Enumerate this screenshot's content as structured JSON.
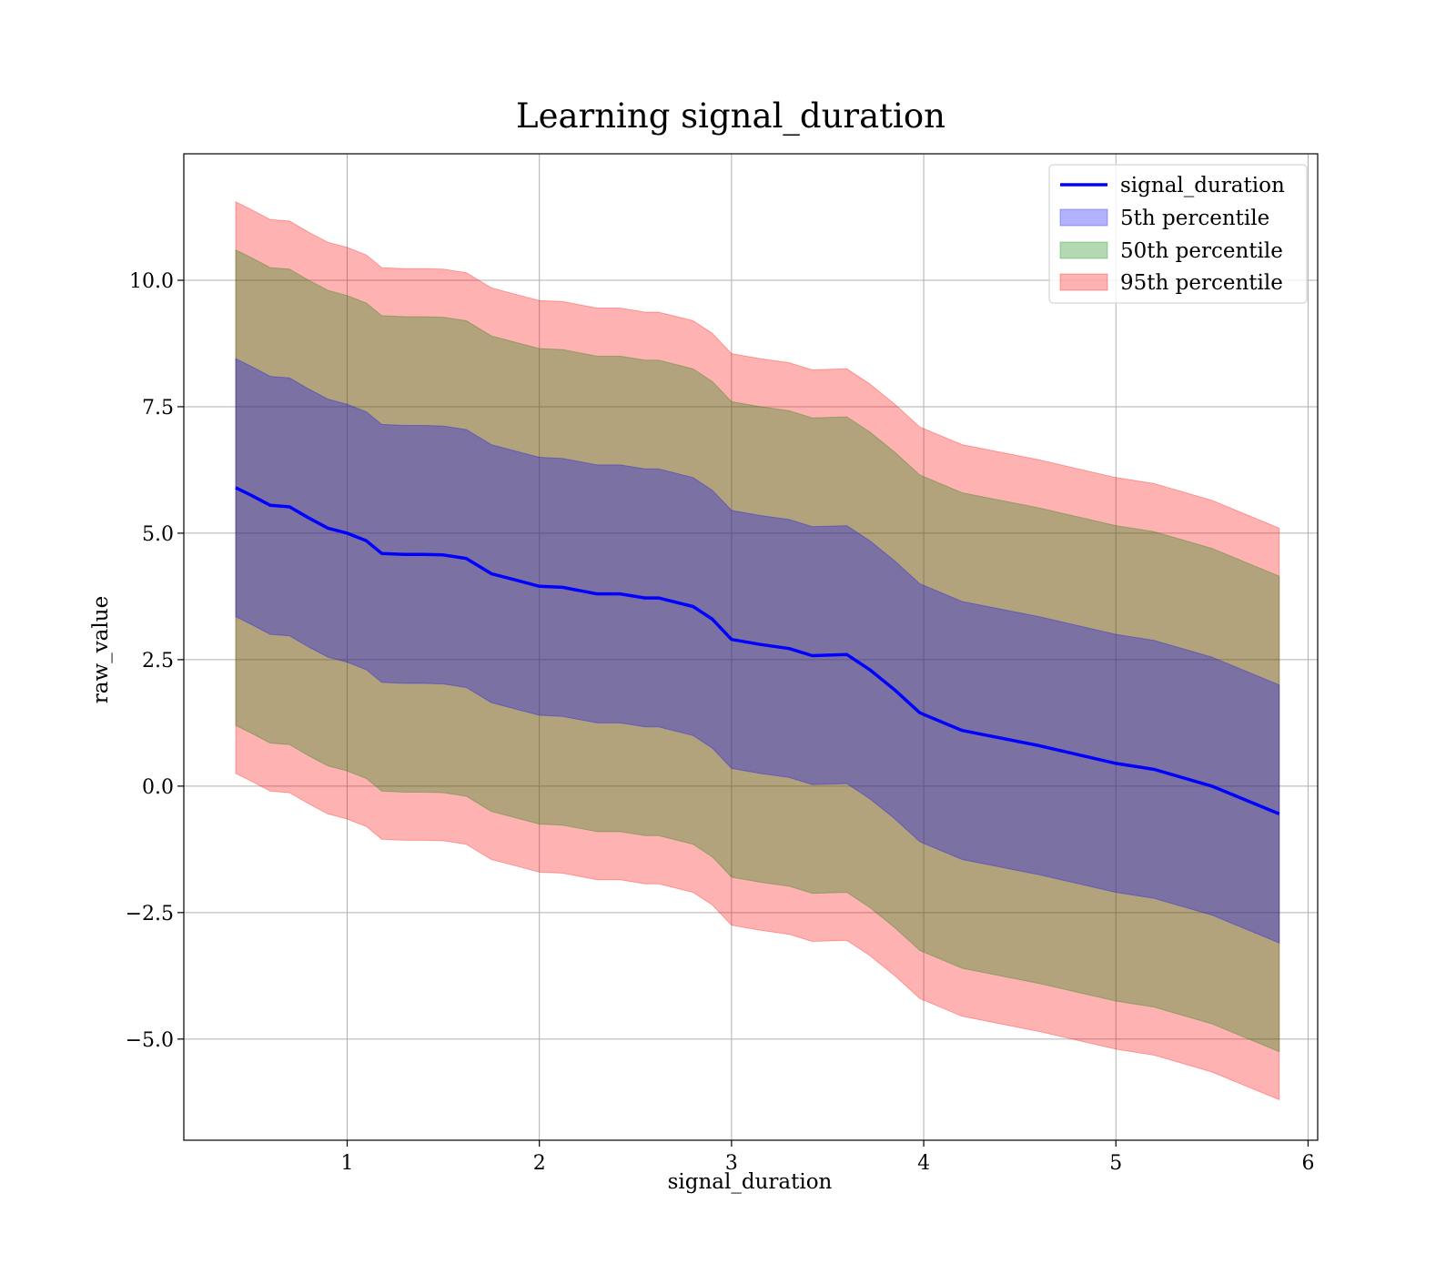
{
  "chart_data": {
    "type": "area",
    "title": "Learning signal_duration",
    "xlabel": "signal_duration",
    "ylabel": "raw_value",
    "xlim": [
      0.15,
      6.05
    ],
    "ylim": [
      -7.0,
      12.5
    ],
    "xticks": [
      1,
      2,
      3,
      4,
      5,
      6
    ],
    "xtick_labels": [
      "1",
      "2",
      "3",
      "4",
      "5",
      "6"
    ],
    "yticks": [
      -5.0,
      -2.5,
      0.0,
      2.5,
      5.0,
      7.5,
      10.0
    ],
    "ytick_labels": [
      "−5.0",
      "−2.5",
      "0.0",
      "2.5",
      "5.0",
      "7.5",
      "10.0"
    ],
    "grid": true,
    "legend_position": "top-right",
    "x": [
      0.42,
      0.5,
      0.6,
      0.7,
      0.8,
      0.9,
      1.0,
      1.1,
      1.18,
      1.3,
      1.4,
      1.5,
      1.62,
      1.75,
      1.9,
      2.0,
      2.12,
      2.3,
      2.42,
      2.55,
      2.62,
      2.8,
      2.9,
      3.0,
      3.15,
      3.3,
      3.42,
      3.6,
      3.72,
      3.85,
      3.98,
      4.2,
      4.6,
      5.0,
      5.2,
      5.5,
      5.85
    ],
    "series": [
      {
        "name": "signal_duration",
        "kind": "line",
        "color": "#0000ff",
        "values": [
          5.9,
          5.75,
          5.55,
          5.52,
          5.3,
          5.1,
          5.0,
          4.85,
          4.6,
          4.58,
          4.58,
          4.57,
          4.5,
          4.2,
          4.05,
          3.95,
          3.93,
          3.8,
          3.8,
          3.72,
          3.72,
          3.55,
          3.3,
          2.9,
          2.8,
          2.72,
          2.58,
          2.6,
          2.3,
          1.9,
          1.45,
          1.1,
          0.8,
          0.45,
          0.33,
          0.0,
          -0.55
        ]
      }
    ],
    "bands": [
      {
        "name": "5th percentile",
        "color": "#0000ff",
        "offset": 2.55
      },
      {
        "name": "50th percentile",
        "color": "#008000",
        "offset": 4.7
      },
      {
        "name": "95th percentile",
        "color": "#ff0000",
        "offset": 5.65
      }
    ]
  }
}
